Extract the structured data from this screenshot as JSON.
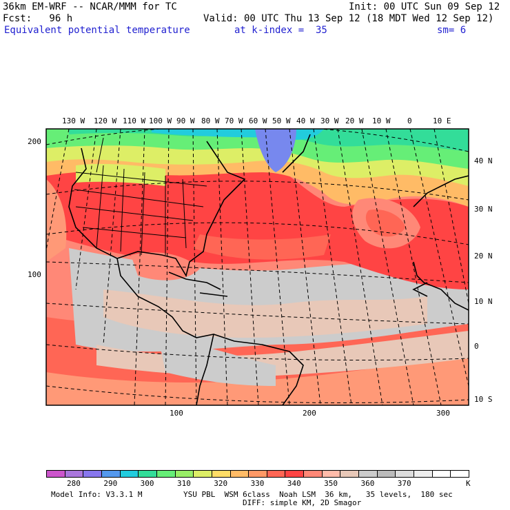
{
  "header": {
    "model_title": "36km EM-WRF -- NCAR/MMM for TC",
    "init": "Init: 00 UTC Sun 09 Sep 12",
    "fcst": "Fcst:   96 h",
    "valid": "Valid: 00 UTC Thu 13 Sep 12 (18 MDT Wed 12 Sep 12)",
    "field": "Equivalent potential temperature",
    "k_index": "at k-index =  35",
    "sm": "sm= 6"
  },
  "map": {
    "lon_labels": [
      "130 W",
      "120 W",
      "110 W",
      "100 W",
      "90 W",
      "80 W",
      "70 W",
      "60 W",
      "50 W",
      "40 W",
      "30 W",
      "20 W",
      "10 W",
      "0",
      "10 E"
    ],
    "lat_labels": [
      "40 N",
      "30 N",
      "20 N",
      "10 N",
      "0",
      "10 S"
    ],
    "grid_y_labels": [
      "200",
      "100"
    ],
    "grid_x_labels": [
      "100",
      "200",
      "300"
    ]
  },
  "colorbar": {
    "labels": [
      "280",
      "290",
      "300",
      "310",
      "320",
      "330",
      "340",
      "350",
      "360",
      "370"
    ],
    "unit": "K",
    "colors": [
      "#cc55cc",
      "#aa77dd",
      "#8877ee",
      "#5599ee",
      "#22ccdd",
      "#33dd99",
      "#66ee77",
      "#99ee66",
      "#ddee66",
      "#ffdd66",
      "#ffbb66",
      "#ff9966",
      "#ff6655",
      "#ff4444",
      "#ff8877",
      "#ffbbaa",
      "#e8c8b8",
      "#cccccc",
      "#bbbbbb",
      "#dddddd",
      "#eeeeee",
      "#ffffff",
      "#ffffff"
    ]
  },
  "footer": {
    "model_info": "Model Info: V3.3.1 M",
    "physics": "YSU PBL  WSM 6class  Noah LSM  36 km,   35 levels,  180 sec",
    "diff": "DIFF: simple KM, 2D Smagor"
  }
}
